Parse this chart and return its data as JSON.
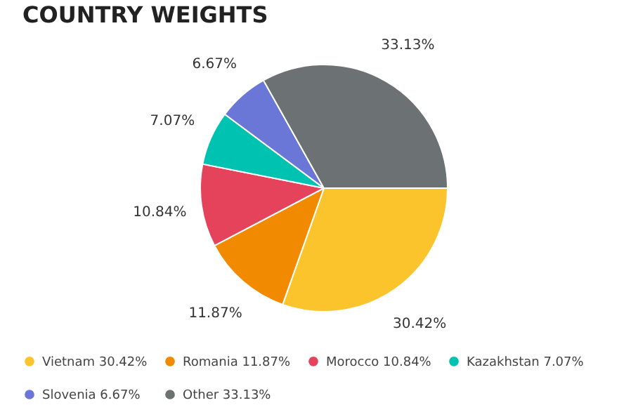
{
  "chart_data": {
    "type": "pie",
    "title": "COUNTRY WEIGHTS",
    "categories": [
      "Vietnam",
      "Romania",
      "Morocco",
      "Kazakhstan",
      "Slovenia",
      "Other"
    ],
    "values": [
      30.42,
      11.87,
      10.84,
      7.07,
      6.67,
      33.13
    ],
    "value_labels": [
      "30.42%",
      "11.87%",
      "10.84%",
      "7.07%",
      "6.67%",
      "33.13%"
    ],
    "colors": [
      "#fcc42c",
      "#f28a00",
      "#e5435c",
      "#00c2b0",
      "#6b77d6",
      "#6c7173"
    ],
    "legend": "bottom"
  }
}
